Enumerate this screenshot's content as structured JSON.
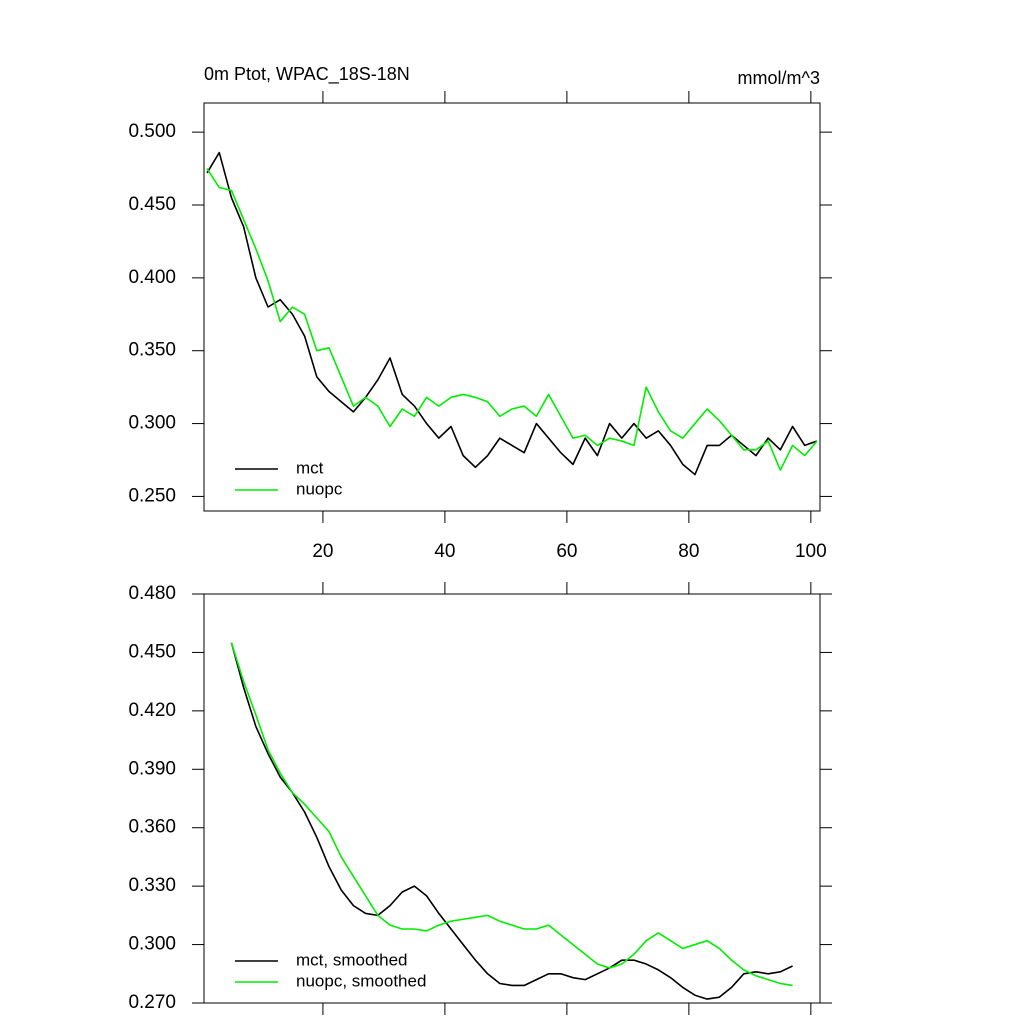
{
  "chart_data": [
    {
      "type": "line",
      "title": "0m Ptot, WPAC_18S-18N",
      "units_label": "mmol/m^3",
      "x": [
        1,
        3,
        5,
        7,
        9,
        11,
        13,
        15,
        17,
        19,
        21,
        23,
        25,
        27,
        29,
        31,
        33,
        35,
        37,
        39,
        41,
        43,
        45,
        47,
        49,
        51,
        53,
        55,
        57,
        59,
        61,
        63,
        65,
        67,
        69,
        71,
        73,
        75,
        77,
        79,
        81,
        83,
        85,
        87,
        89,
        91,
        93,
        95,
        97,
        99,
        101
      ],
      "series": [
        {
          "name": "mct",
          "color": "#000000",
          "values": [
            0.472,
            0.486,
            0.455,
            0.435,
            0.4,
            0.38,
            0.385,
            0.375,
            0.36,
            0.332,
            0.322,
            0.315,
            0.308,
            0.318,
            0.33,
            0.345,
            0.32,
            0.312,
            0.3,
            0.29,
            0.298,
            0.278,
            0.27,
            0.278,
            0.29,
            0.285,
            0.28,
            0.3,
            0.29,
            0.28,
            0.272,
            0.29,
            0.278,
            0.3,
            0.29,
            0.3,
            0.29,
            0.295,
            0.285,
            0.272,
            0.265,
            0.285,
            0.285,
            0.292,
            0.285,
            0.278,
            0.29,
            0.282,
            0.298,
            0.285,
            0.288
          ]
        },
        {
          "name": "nuopc",
          "color": "#00ee00",
          "values": [
            0.475,
            0.462,
            0.46,
            0.44,
            0.42,
            0.398,
            0.37,
            0.38,
            0.375,
            0.35,
            0.352,
            0.332,
            0.312,
            0.318,
            0.312,
            0.298,
            0.31,
            0.305,
            0.318,
            0.312,
            0.318,
            0.32,
            0.318,
            0.315,
            0.305,
            0.31,
            0.312,
            0.305,
            0.32,
            0.305,
            0.29,
            0.292,
            0.285,
            0.29,
            0.288,
            0.285,
            0.325,
            0.308,
            0.295,
            0.29,
            0.3,
            0.31,
            0.302,
            0.292,
            0.282,
            0.282,
            0.288,
            0.268,
            0.285,
            0.278,
            0.288
          ]
        }
      ],
      "xlim": [
        0.5,
        101.5
      ],
      "ylim": [
        0.24,
        0.52
      ],
      "xticks": [
        20,
        40,
        60,
        80,
        100
      ],
      "yticks": [
        {
          "value": 0.25,
          "label": "0.250"
        },
        {
          "value": 0.3,
          "label": "0.300"
        },
        {
          "value": 0.35,
          "label": "0.350"
        },
        {
          "value": 0.4,
          "label": "0.400"
        },
        {
          "value": 0.45,
          "label": "0.450"
        },
        {
          "value": 0.5,
          "label": "0.500"
        }
      ],
      "legend": "lower left"
    },
    {
      "type": "line",
      "x": [
        5,
        7,
        9,
        11,
        13,
        15,
        17,
        19,
        21,
        23,
        25,
        27,
        29,
        31,
        33,
        35,
        37,
        39,
        41,
        43,
        45,
        47,
        49,
        51,
        53,
        55,
        57,
        59,
        61,
        63,
        65,
        67,
        69,
        71,
        73,
        75,
        77,
        79,
        81,
        83,
        85,
        87,
        89,
        91,
        93,
        95,
        97
      ],
      "series": [
        {
          "name": "mct, smoothed",
          "color": "#000000",
          "values": [
            0.455,
            0.432,
            0.412,
            0.398,
            0.386,
            0.378,
            0.368,
            0.355,
            0.34,
            0.328,
            0.32,
            0.316,
            0.315,
            0.32,
            0.327,
            0.33,
            0.325,
            0.316,
            0.308,
            0.3,
            0.292,
            0.285,
            0.28,
            0.279,
            0.279,
            0.282,
            0.285,
            0.285,
            0.283,
            0.282,
            0.285,
            0.288,
            0.292,
            0.292,
            0.29,
            0.287,
            0.283,
            0.278,
            0.274,
            0.272,
            0.273,
            0.278,
            0.285,
            0.286,
            0.285,
            0.286,
            0.289
          ]
        },
        {
          "name": "nuopc, smoothed",
          "color": "#00ee00",
          "values": [
            0.455,
            0.435,
            0.418,
            0.4,
            0.388,
            0.378,
            0.372,
            0.365,
            0.358,
            0.345,
            0.335,
            0.325,
            0.315,
            0.31,
            0.308,
            0.308,
            0.307,
            0.31,
            0.312,
            0.313,
            0.314,
            0.315,
            0.312,
            0.31,
            0.308,
            0.308,
            0.31,
            0.305,
            0.3,
            0.295,
            0.29,
            0.288,
            0.29,
            0.295,
            0.302,
            0.306,
            0.302,
            0.298,
            0.3,
            0.302,
            0.298,
            0.292,
            0.287,
            0.284,
            0.282,
            0.28,
            0.279
          ]
        }
      ],
      "xlim": [
        0.5,
        101.5
      ],
      "ylim": [
        0.27,
        0.48
      ],
      "yticks": [
        {
          "value": 0.27,
          "label": "0.270"
        },
        {
          "value": 0.3,
          "label": "0.300"
        },
        {
          "value": 0.33,
          "label": "0.330"
        },
        {
          "value": 0.36,
          "label": "0.360"
        },
        {
          "value": 0.39,
          "label": "0.390"
        },
        {
          "value": 0.42,
          "label": "0.420"
        },
        {
          "value": 0.45,
          "label": "0.450"
        },
        {
          "value": 0.48,
          "label": "0.480"
        }
      ],
      "legend": "lower left"
    }
  ]
}
